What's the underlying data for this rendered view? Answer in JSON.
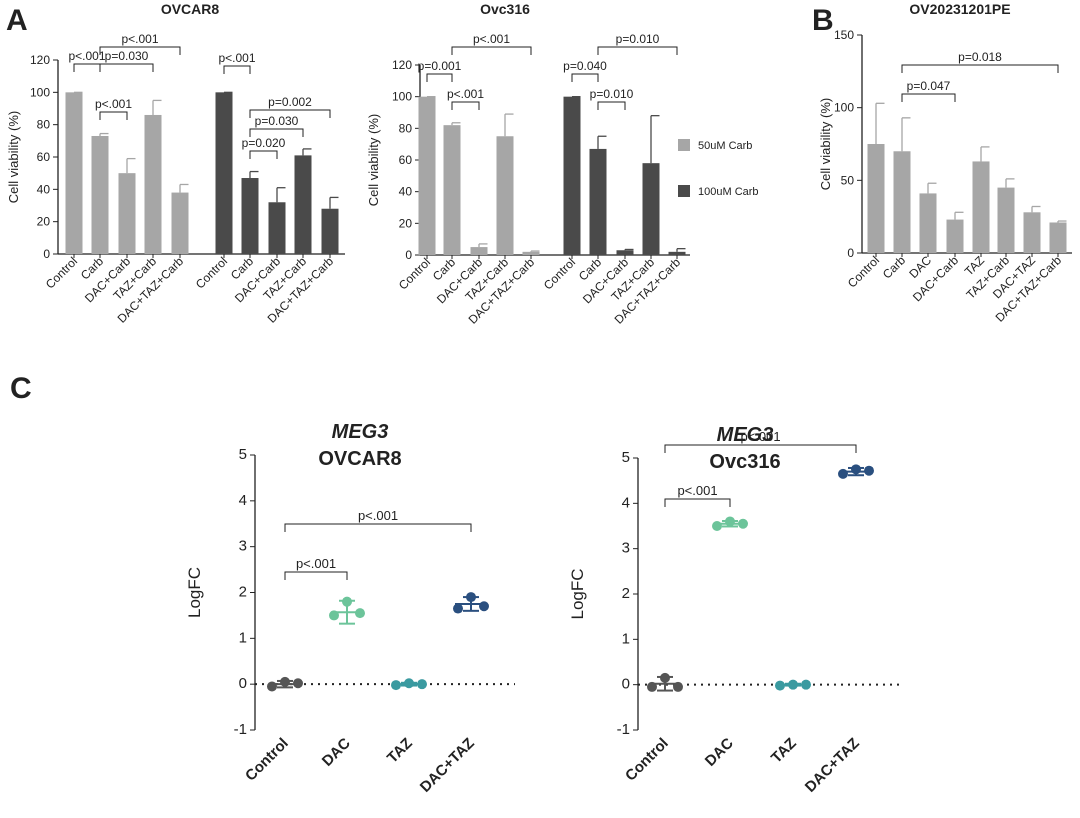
{
  "panel_labels": [
    "A",
    "B",
    "C"
  ],
  "chart_data": [
    {
      "type": "bar",
      "title": "OVCAR8",
      "ylabel": "Cell viability (%)",
      "categories": [
        "Control",
        "Carb",
        "DAC+Carb",
        "TAZ+Carb",
        "DAC+TAZ+Carb",
        "Control",
        "Carb",
        "DAC+Carb",
        "TAZ+Carb",
        "DAC+TAZ+Carb"
      ],
      "series": [
        {
          "color": "#a6a6a6",
          "values": [
            100,
            73,
            50,
            86,
            38,
            null,
            null,
            null,
            null,
            null
          ],
          "errors": [
            0,
            1.5,
            9,
            9,
            5,
            null,
            null,
            null,
            null,
            null
          ]
        },
        {
          "color": "#4a4a4a",
          "values": [
            null,
            null,
            null,
            null,
            null,
            100,
            47,
            32,
            61,
            28
          ],
          "errors": [
            null,
            null,
            null,
            null,
            null,
            0,
            4,
            9,
            4,
            7
          ]
        }
      ],
      "ylim": [
        0,
        120
      ],
      "yticks": [
        0,
        20,
        40,
        60,
        80,
        100,
        120
      ],
      "annotations": [
        "p<.001",
        "p=0.030",
        "p<.001",
        "p<.001",
        "p<.001",
        "p=0.002",
        "p=0.030",
        "p=0.020"
      ]
    },
    {
      "type": "bar",
      "title": "Ovc316",
      "ylabel": "Cell viability (%)",
      "categories": [
        "Control",
        "Carb",
        "DAC+Carb",
        "TAZ+Carb",
        "DAC+TAZ+Carb",
        "Control",
        "Carb",
        "DAC+Carb",
        "TAZ+Carb",
        "DAC+TAZ+Carb"
      ],
      "series": [
        {
          "name": "50uM Carb",
          "color": "#a6a6a6",
          "values": [
            100,
            82,
            5,
            75,
            2,
            null,
            null,
            null,
            null,
            null
          ],
          "errors": [
            0,
            1.5,
            2,
            14,
            0.5,
            null,
            null,
            null,
            null,
            null
          ]
        },
        {
          "name": "100uM Carb",
          "color": "#4a4a4a",
          "values": [
            null,
            null,
            null,
            null,
            null,
            100,
            67,
            3,
            58,
            2
          ],
          "errors": [
            null,
            null,
            null,
            null,
            null,
            0,
            8,
            0.5,
            30,
            2
          ]
        }
      ],
      "ylim": [
        0,
        120
      ],
      "yticks": [
        0,
        20,
        40,
        60,
        80,
        100,
        120
      ],
      "legend": "right",
      "annotations": [
        "p=0.001",
        "p<.001",
        "p<.001",
        "p=0.040",
        "p=0.010",
        "p=0.010"
      ]
    },
    {
      "type": "bar",
      "title": "OV20231201PE",
      "ylabel": "Cell viability (%)",
      "categories": [
        "Control",
        "Carb",
        "DAC",
        "DAC+Carb",
        "TAZ",
        "TAZ+Carb",
        "DAC+TAZ",
        "DAC+TAZ+Carb"
      ],
      "series": [
        {
          "color": "#a6a6a6",
          "values": [
            75,
            70,
            41,
            23,
            63,
            45,
            28,
            21
          ],
          "errors": [
            28,
            23,
            7,
            5,
            10,
            6,
            4,
            1
          ]
        }
      ],
      "ylim": [
        0,
        150
      ],
      "yticks": [
        0,
        50,
        100,
        150
      ],
      "annotations": [
        "p=0.047",
        "p=0.018"
      ]
    },
    {
      "type": "scatter",
      "title": "MEG3",
      "subtitle": "OVCAR8",
      "ylabel": "LogFC",
      "categories": [
        "Control",
        "DAC",
        "TAZ",
        "DAC+TAZ"
      ],
      "colors": [
        "#555555",
        "#6cc49a",
        "#3a9aa0",
        "#2a4f7f"
      ],
      "points": [
        [
          -0.05,
          0.05,
          0.02
        ],
        [
          1.5,
          1.8,
          1.55
        ],
        [
          -0.02,
          0.02,
          0
        ],
        [
          1.65,
          1.9,
          1.7
        ]
      ],
      "mean": [
        0,
        1.57,
        0,
        1.75
      ],
      "sd": [
        0.07,
        0.25,
        0.03,
        0.15
      ],
      "ylim": [
        -1,
        5
      ],
      "yticks": [
        -1,
        0,
        1,
        2,
        3,
        4,
        5
      ],
      "annotations": [
        "p<.001",
        "p<.001"
      ]
    },
    {
      "type": "scatter",
      "title": "MEG3",
      "subtitle": "Ovc316",
      "ylabel": "LogFC",
      "categories": [
        "Control",
        "DAC",
        "TAZ",
        "DAC+TAZ"
      ],
      "colors": [
        "#555555",
        "#6cc49a",
        "#3a9aa0",
        "#2a4f7f"
      ],
      "points": [
        [
          -0.05,
          0.15,
          -0.05
        ],
        [
          3.5,
          3.6,
          3.55
        ],
        [
          -0.02,
          0,
          0
        ],
        [
          4.65,
          4.75,
          4.72
        ]
      ],
      "mean": [
        0.02,
        3.55,
        0,
        4.7
      ],
      "sd": [
        0.15,
        0.06,
        0.02,
        0.08
      ],
      "ylim": [
        -1,
        5
      ],
      "yticks": [
        -1,
        0,
        1,
        2,
        3,
        4,
        5
      ],
      "annotations": [
        "p<.001",
        "p<.001"
      ]
    }
  ]
}
